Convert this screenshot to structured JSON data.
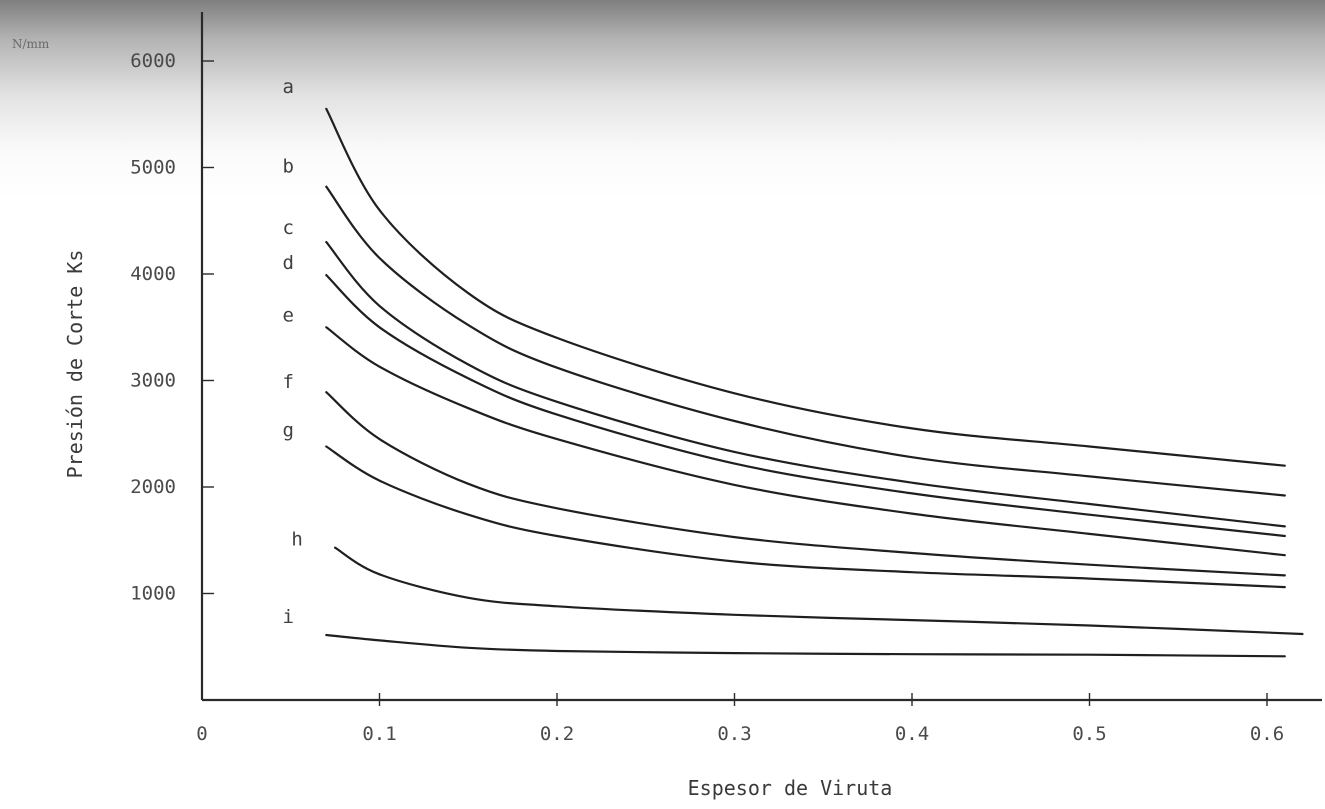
{
  "chart_data": {
    "type": "line",
    "title": "",
    "xlabel": "Espesor de Viruta",
    "ylabel": "Presión de Corte Ks",
    "y_unit_label": "N/mm",
    "xlim": [
      0,
      0.62
    ],
    "ylim": [
      0,
      6000
    ],
    "x_ticks": [
      "0",
      "0.1",
      "0.2",
      "0.3",
      "0.4",
      "0.5",
      "0.6"
    ],
    "y_ticks": [
      "1000",
      "2000",
      "3000",
      "4000",
      "5000",
      "6000"
    ],
    "grid": false,
    "legend": "none",
    "series": [
      {
        "name": "a",
        "x": [
          0.07,
          0.1,
          0.15,
          0.2,
          0.3,
          0.4,
          0.5,
          0.61
        ],
        "y": [
          5550,
          4600,
          3820,
          3400,
          2880,
          2550,
          2380,
          2200
        ]
      },
      {
        "name": "b",
        "x": [
          0.07,
          0.1,
          0.15,
          0.2,
          0.3,
          0.4,
          0.5,
          0.61
        ],
        "y": [
          4820,
          4150,
          3520,
          3120,
          2620,
          2280,
          2100,
          1920
        ]
      },
      {
        "name": "c",
        "x": [
          0.07,
          0.1,
          0.15,
          0.2,
          0.3,
          0.4,
          0.5,
          0.61
        ],
        "y": [
          4300,
          3700,
          3150,
          2800,
          2330,
          2040,
          1840,
          1630
        ]
      },
      {
        "name": "d",
        "x": [
          0.07,
          0.1,
          0.15,
          0.2,
          0.3,
          0.4,
          0.5,
          0.61
        ],
        "y": [
          3990,
          3500,
          3020,
          2680,
          2220,
          1940,
          1740,
          1540
        ]
      },
      {
        "name": "e",
        "x": [
          0.07,
          0.1,
          0.15,
          0.2,
          0.3,
          0.4,
          0.5,
          0.61
        ],
        "y": [
          3500,
          3130,
          2740,
          2450,
          2020,
          1750,
          1560,
          1360
        ]
      },
      {
        "name": "f",
        "x": [
          0.07,
          0.1,
          0.15,
          0.2,
          0.3,
          0.4,
          0.5,
          0.61
        ],
        "y": [
          2890,
          2450,
          2030,
          1800,
          1530,
          1380,
          1270,
          1170
        ]
      },
      {
        "name": "g",
        "x": [
          0.07,
          0.1,
          0.15,
          0.2,
          0.3,
          0.4,
          0.5,
          0.61
        ],
        "y": [
          2380,
          2060,
          1740,
          1540,
          1300,
          1200,
          1140,
          1060
        ]
      },
      {
        "name": "h",
        "x": [
          0.075,
          0.1,
          0.15,
          0.2,
          0.3,
          0.4,
          0.5,
          0.62
        ],
        "y": [
          1430,
          1180,
          960,
          880,
          800,
          750,
          700,
          620
        ]
      },
      {
        "name": "i",
        "x": [
          0.07,
          0.1,
          0.15,
          0.2,
          0.3,
          0.4,
          0.5,
          0.61
        ],
        "y": [
          610,
          560,
          490,
          460,
          440,
          430,
          425,
          410
        ]
      }
    ]
  }
}
